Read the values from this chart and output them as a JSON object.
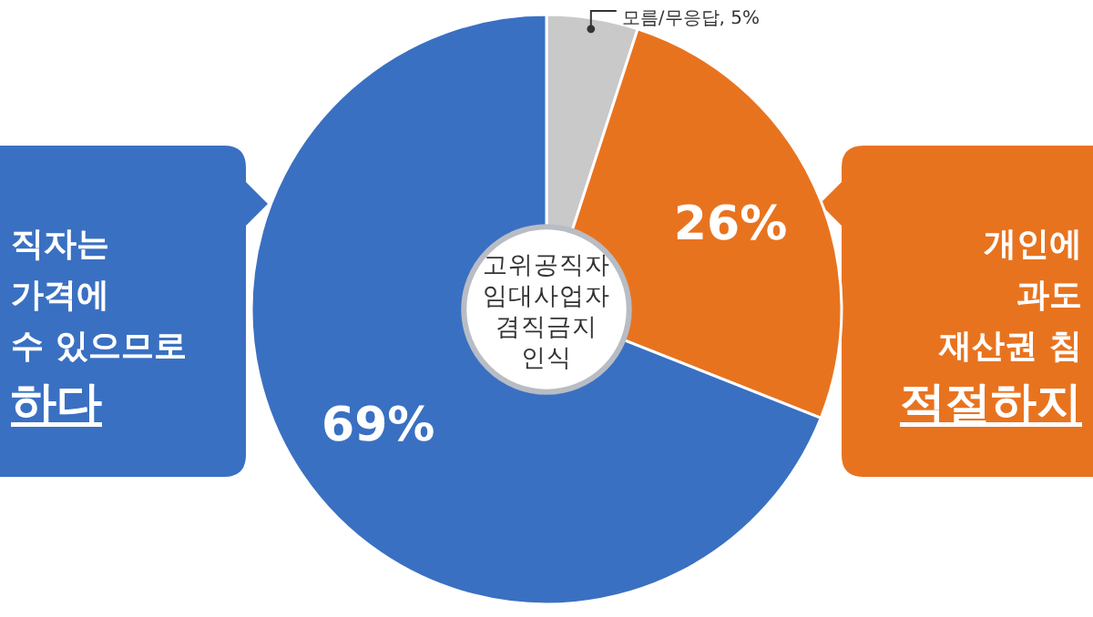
{
  "chart_data": {
    "type": "donut",
    "title": "고위공직자 임대사업자 겸직금지 인식",
    "categories": [
      "모름/무응답",
      null,
      null
    ],
    "values": [
      5,
      26,
      69
    ],
    "value_labels": [
      "5%",
      "26%",
      "69%"
    ],
    "colors": [
      "#c9c9c9",
      "#e8731f",
      "#3a70c2"
    ],
    "annotations": [
      "직자는",
      "가격에",
      "수 있으므로",
      "하다",
      "개인에",
      "과도",
      "재산권 침",
      "적절하지"
    ]
  }
}
